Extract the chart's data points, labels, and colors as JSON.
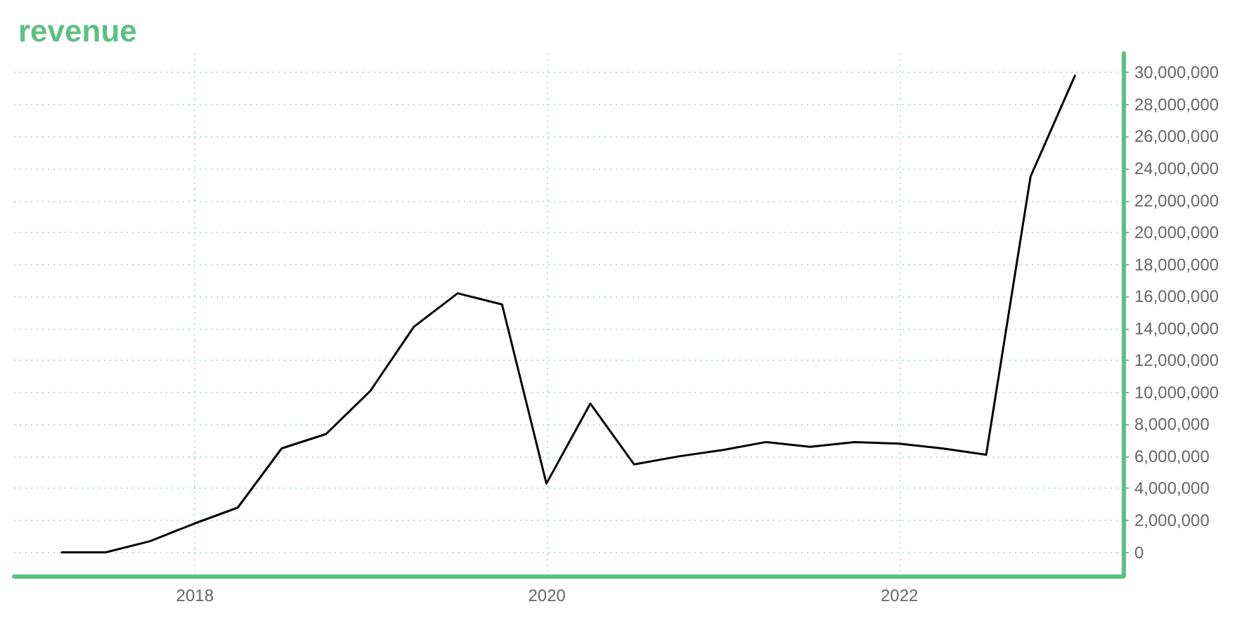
{
  "chart_data": {
    "type": "line",
    "title": "revenue",
    "x": [
      "2017-03-31",
      "2017-06-30",
      "2017-09-30",
      "2017-12-31",
      "2018-03-31",
      "2018-06-30",
      "2018-09-30",
      "2018-12-31",
      "2019-03-31",
      "2019-06-30",
      "2019-09-30",
      "2019-12-31",
      "2020-03-31",
      "2020-06-30",
      "2020-09-30",
      "2020-12-31",
      "2021-03-31",
      "2021-06-30",
      "2021-09-30",
      "2021-12-31",
      "2022-03-31",
      "2022-06-30",
      "2022-09-30",
      "2022-12-31"
    ],
    "series": [
      {
        "color": "#000000",
        "values": [
          0,
          0,
          700000,
          1800000,
          2800000,
          6500000,
          7400000,
          10100000,
          14100000,
          16200000,
          15500000,
          4300000,
          9300000,
          5500000,
          6000000,
          6400000,
          6900000,
          6600000,
          6900000,
          6800000,
          6500000,
          6100000,
          23500000,
          29800000
        ]
      }
    ],
    "xlim": [
      "2016-12-22",
      "2023-04-10"
    ],
    "xticks": [
      {
        "value": "2018-01-01",
        "label": "2018"
      },
      {
        "value": "2020-01-01",
        "label": "2020"
      },
      {
        "value": "2022-01-01",
        "label": "2022"
      }
    ],
    "ylim": [
      -1470000,
      31200000
    ],
    "yticks": [
      {
        "value": 0,
        "label": "0"
      },
      {
        "value": 2000000,
        "label": "2,000,000"
      },
      {
        "value": 4000000,
        "label": "4,000,000"
      },
      {
        "value": 6000000,
        "label": "6,000,000"
      },
      {
        "value": 8000000,
        "label": "8,000,000"
      },
      {
        "value": 10000000,
        "label": "10,000,000"
      },
      {
        "value": 12000000,
        "label": "12,000,000"
      },
      {
        "value": 14000000,
        "label": "14,000,000"
      },
      {
        "value": 16000000,
        "label": "16,000,000"
      },
      {
        "value": 18000000,
        "label": "18,000,000"
      },
      {
        "value": 20000000,
        "label": "20,000,000"
      },
      {
        "value": 22000000,
        "label": "22,000,000"
      },
      {
        "value": 24000000,
        "label": "24,000,000"
      },
      {
        "value": 26000000,
        "label": "26,000,000"
      },
      {
        "value": 28000000,
        "label": "28,000,000"
      },
      {
        "value": 30000000,
        "label": "30,000,000"
      }
    ],
    "grid": true,
    "marker": "none",
    "line_style": "solid"
  }
}
